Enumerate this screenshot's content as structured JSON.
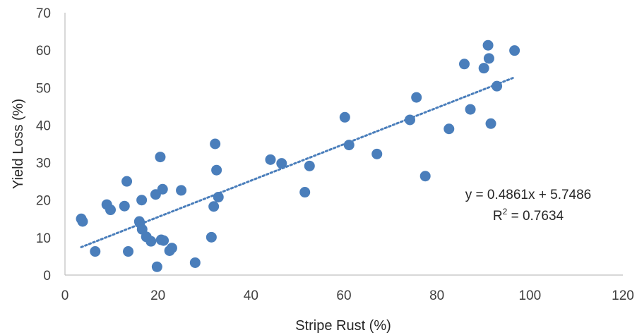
{
  "chart_data": {
    "type": "scatter",
    "title": "",
    "xlabel": "Stripe Rust (%)",
    "ylabel": "Yield Loss (%)",
    "xlim": [
      0,
      120
    ],
    "ylim": [
      0,
      70
    ],
    "x_ticks": [
      "0",
      "20",
      "40",
      "60",
      "80",
      "100",
      "120"
    ],
    "y_ticks": [
      "0",
      "10",
      "20",
      "30",
      "40",
      "50",
      "60",
      "70"
    ],
    "grid": false,
    "legend": "none",
    "marker_color": "#4a7ebb",
    "trendline_color": "#4a7ebb",
    "series": [
      {
        "points": [
          [
            3.5,
            15.0
          ],
          [
            3.8,
            14.3
          ],
          [
            6.5,
            6.3
          ],
          [
            9.0,
            18.8
          ],
          [
            9.8,
            17.4
          ],
          [
            12.8,
            18.4
          ],
          [
            13.3,
            25.0
          ],
          [
            13.6,
            6.3
          ],
          [
            16.0,
            14.3
          ],
          [
            16.1,
            13.9
          ],
          [
            16.5,
            20.0
          ],
          [
            16.6,
            12.2
          ],
          [
            17.5,
            10.2
          ],
          [
            18.5,
            9.0
          ],
          [
            19.5,
            21.5
          ],
          [
            19.8,
            2.2
          ],
          [
            20.5,
            31.5
          ],
          [
            20.7,
            9.4
          ],
          [
            21.0,
            22.9
          ],
          [
            21.2,
            9.2
          ],
          [
            22.5,
            6.5
          ],
          [
            23.0,
            7.2
          ],
          [
            25.0,
            22.6
          ],
          [
            28.0,
            3.3
          ],
          [
            31.5,
            10.1
          ],
          [
            32.0,
            18.3
          ],
          [
            32.3,
            35.0
          ],
          [
            32.6,
            28.0
          ],
          [
            33.0,
            20.8
          ],
          [
            44.2,
            30.8
          ],
          [
            46.6,
            29.8
          ],
          [
            51.6,
            22.1
          ],
          [
            52.6,
            29.1
          ],
          [
            60.2,
            42.1
          ],
          [
            61.1,
            34.7
          ],
          [
            67.1,
            32.3
          ],
          [
            74.2,
            41.4
          ],
          [
            75.6,
            47.4
          ],
          [
            77.5,
            26.4
          ],
          [
            82.6,
            39.0
          ],
          [
            85.9,
            56.3
          ],
          [
            87.2,
            44.2
          ],
          [
            90.1,
            55.2
          ],
          [
            91.0,
            61.3
          ],
          [
            91.2,
            57.8
          ],
          [
            91.6,
            40.4
          ],
          [
            92.9,
            50.4
          ],
          [
            96.7,
            59.9
          ]
        ]
      }
    ],
    "trendline": {
      "slope": 0.4861,
      "intercept": 5.7486,
      "x_range": [
        3.5,
        96.7
      ],
      "equation": "y = 0.4861x + 5.7486",
      "r2_prefix": "R",
      "r2_exp": "2",
      "r2_value": " = 0.7634"
    }
  }
}
